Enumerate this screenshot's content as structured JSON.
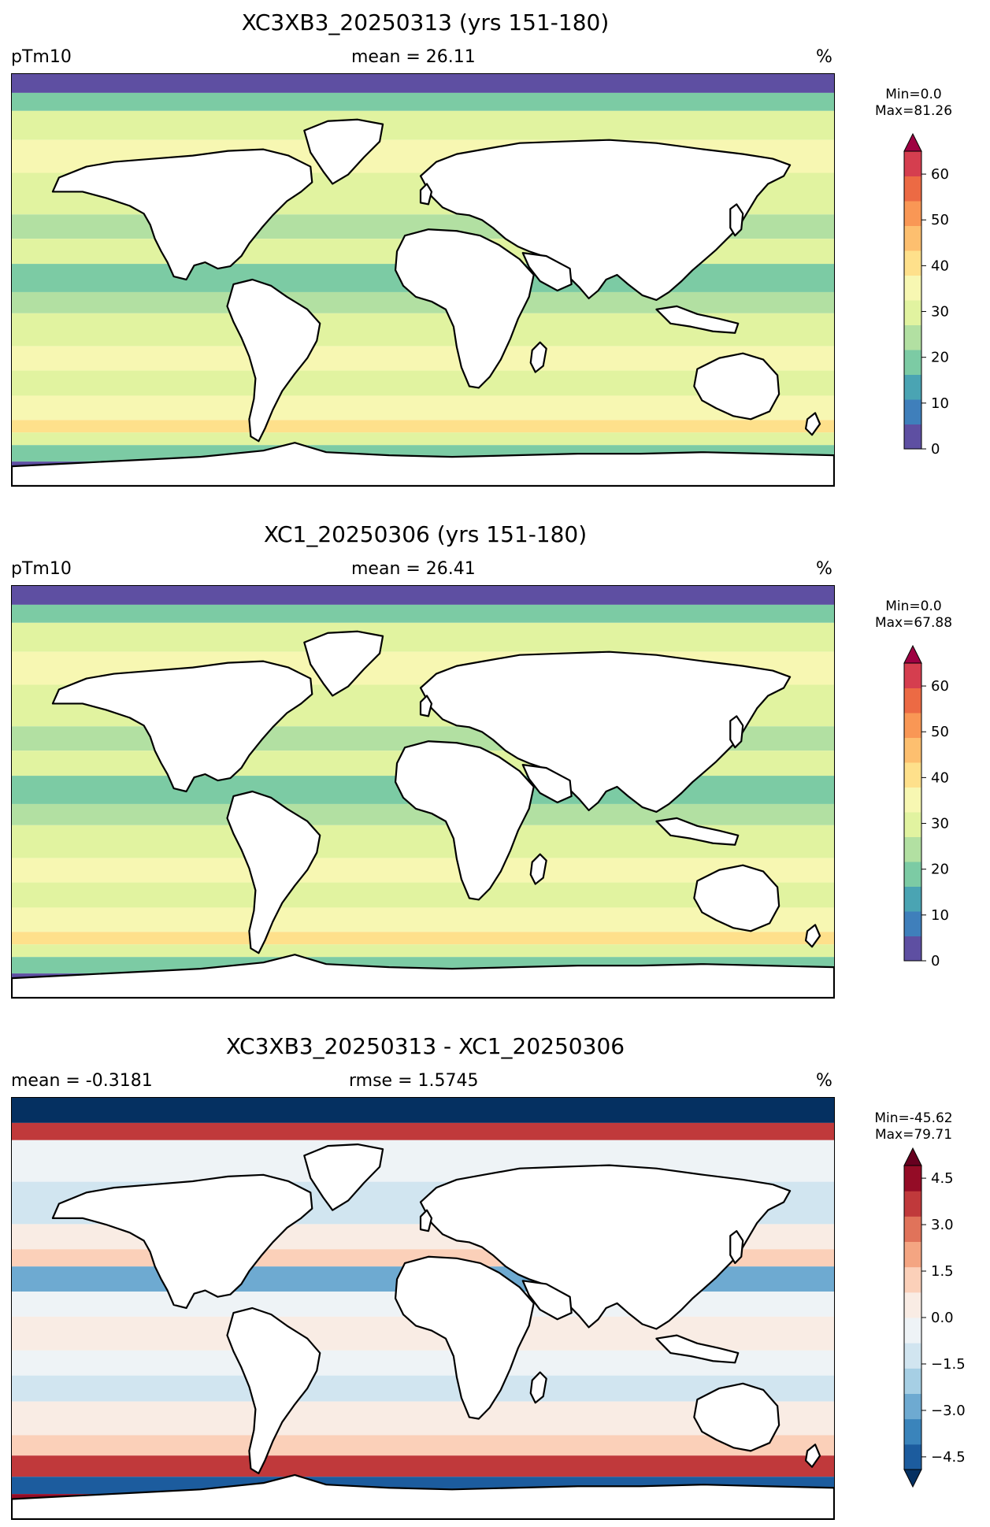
{
  "figure": {
    "panels": [
      {
        "title": "XC3XB3_20250313 (yrs 151-180)",
        "left": "pTm10",
        "center": "mean = 26.11",
        "right": "%",
        "min": "Min=0.0",
        "max": "Max=81.26",
        "colormap": "Spectral_r",
        "colorbar_ticks": [
          "0",
          "10",
          "20",
          "30",
          "40",
          "50",
          "60"
        ],
        "colorbar_extend": "max",
        "colors": [
          "#5e4fa2",
          "#3f7fbb",
          "#4aa4b3",
          "#7ccba4",
          "#b2e0a2",
          "#e1f3a0",
          "#f7f7b2",
          "#fee08b",
          "#fdbf6f",
          "#f99755",
          "#ec6a44",
          "#d53e4f",
          "#9e0142"
        ]
      },
      {
        "title": "XC1_20250306 (yrs 151-180)",
        "left": "pTm10",
        "center": "mean = 26.41",
        "right": "%",
        "min": "Min=0.0",
        "max": "Max=67.88",
        "colormap": "Spectral_r",
        "colorbar_ticks": [
          "0",
          "10",
          "20",
          "30",
          "40",
          "50",
          "60"
        ],
        "colorbar_extend": "max",
        "colors": [
          "#5e4fa2",
          "#3f7fbb",
          "#4aa4b3",
          "#7ccba4",
          "#b2e0a2",
          "#e1f3a0",
          "#f7f7b2",
          "#fee08b",
          "#fdbf6f",
          "#f99755",
          "#ec6a44",
          "#d53e4f",
          "#9e0142"
        ]
      },
      {
        "title": "XC3XB3_20250313 - XC1_20250306",
        "left": "mean = -0.3181",
        "center": "rmse = 1.5745",
        "right": "%",
        "min": "Min=-45.62",
        "max": "Max=79.71",
        "colormap": "RdBu_r",
        "colorbar_ticks": [
          "−4.5",
          "−3.0",
          "−1.5",
          "0.0",
          "1.5",
          "3.0",
          "4.5"
        ],
        "colorbar_extend": "both",
        "colors": [
          "#053061",
          "#1c5c9e",
          "#3a84bb",
          "#6eaad1",
          "#a6cfe4",
          "#d1e5f0",
          "#eef3f6",
          "#f9ece4",
          "#fbd0b9",
          "#f4a582",
          "#e0735a",
          "#c0393b",
          "#940c26",
          "#67001f"
        ]
      }
    ]
  }
}
